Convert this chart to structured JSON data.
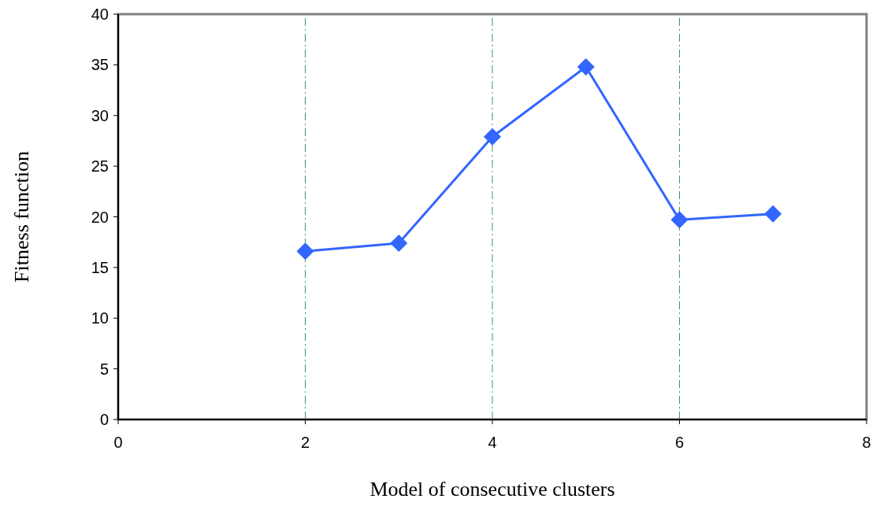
{
  "chart_data": {
    "type": "line",
    "xlabel": "Model of consecutive clusters",
    "ylabel": "Fitness function",
    "x": [
      2,
      3,
      4,
      5,
      6,
      7
    ],
    "series": [
      {
        "color": "#3366ff",
        "values": [
          16.6,
          17.4,
          27.9,
          34.8,
          19.7,
          20.3
        ]
      }
    ],
    "xlim": [
      0,
      8
    ],
    "xticks": [
      0,
      2,
      4,
      6,
      8
    ],
    "ylim": [
      0,
      40
    ],
    "yticks": [
      0,
      5,
      10,
      15,
      20,
      25,
      30,
      35,
      40
    ],
    "grid": "x",
    "marker": "diamond",
    "line_style": "solid"
  }
}
